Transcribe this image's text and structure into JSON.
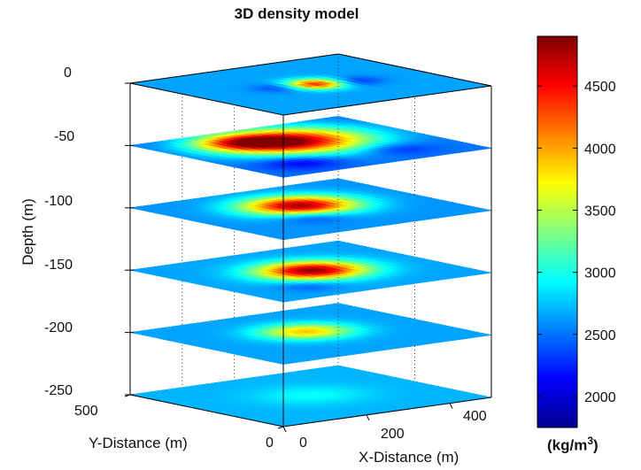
{
  "chart_data": {
    "type": "heatmap",
    "title": "3D density model",
    "zlabel": "Depth (m)",
    "xlabel": "X-Distance (m)",
    "ylabel": "Y-Distance (m)",
    "z_ticks": [
      "0",
      "-50",
      "-100",
      "-150",
      "-200",
      "-250"
    ],
    "z_range": [
      -250,
      0
    ],
    "x_ticks": [
      "0",
      "200",
      "400"
    ],
    "x_range": [
      0,
      500
    ],
    "y_ticks": [
      "0",
      "500"
    ],
    "y_range": [
      0,
      500
    ],
    "grid": true,
    "colorbar": {
      "range": [
        1750,
        4900
      ],
      "ticks": [
        "2000",
        "2500",
        "3000",
        "3500",
        "4000",
        "4500"
      ],
      "unit_base": "(kg/m",
      "unit_exp": "3",
      "unit_close": ")",
      "colormap": "jet",
      "placement": "right"
    },
    "slices": [
      {
        "depth": 0,
        "background": 2650,
        "anomalies": [
          {
            "x": 260,
            "y": 250,
            "value": 4600,
            "radius": 60
          },
          {
            "x": 200,
            "y": 260,
            "value": 2100,
            "radius": 55
          },
          {
            "x": 330,
            "y": 230,
            "value": 2150,
            "radius": 55
          }
        ]
      },
      {
        "depth": -50,
        "background": 2500,
        "anomalies": [
          {
            "x": 260,
            "y": 330,
            "value": 4750,
            "radius": 150
          },
          {
            "x": 180,
            "y": 380,
            "value": 3600,
            "radius": 90
          },
          {
            "x": 130,
            "y": 120,
            "value": 2050,
            "radius": 80
          },
          {
            "x": 360,
            "y": 120,
            "value": 2200,
            "radius": 70
          }
        ]
      },
      {
        "depth": -100,
        "background": 2600,
        "anomalies": [
          {
            "x": 260,
            "y": 300,
            "value": 4800,
            "radius": 110
          },
          {
            "x": 200,
            "y": 180,
            "value": 2200,
            "radius": 70
          }
        ]
      },
      {
        "depth": -150,
        "background": 2650,
        "anomalies": [
          {
            "x": 260,
            "y": 260,
            "value": 4850,
            "radius": 105
          },
          {
            "x": 150,
            "y": 120,
            "value": 2400,
            "radius": 60
          }
        ]
      },
      {
        "depth": -200,
        "background": 2650,
        "anomalies": [
          {
            "x": 260,
            "y": 280,
            "value": 3900,
            "radius": 90
          }
        ]
      },
      {
        "depth": -250,
        "background": 2700,
        "anomalies": [
          {
            "x": 260,
            "y": 260,
            "value": 2950,
            "radius": 110
          }
        ]
      }
    ]
  }
}
